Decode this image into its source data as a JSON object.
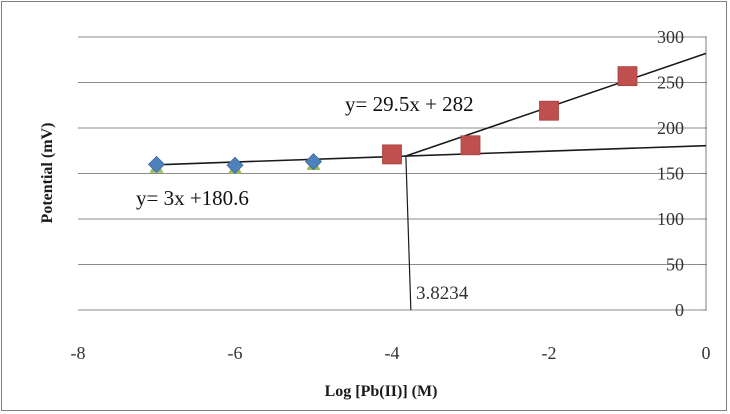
{
  "chart_data": {
    "type": "scatter",
    "xlabel": "Log [Pb(II)] (M)",
    "ylabel": "Potential (mV)",
    "xlim": [
      -8,
      0
    ],
    "ylim": [
      0,
      300
    ],
    "x_ticks": [
      "-8",
      "-6",
      "-4",
      "-2",
      "0"
    ],
    "y_ticks": [
      "0",
      "50",
      "100",
      "150",
      "200",
      "250",
      "300"
    ],
    "grid": "horizontal",
    "series": [
      {
        "marker": "diamond",
        "color": "#4f81bd",
        "points": [
          {
            "x": -7,
            "y": 160
          },
          {
            "x": -6,
            "y": 159
          },
          {
            "x": -5,
            "y": 163
          }
        ]
      },
      {
        "marker": "triangle",
        "color": "#9bbb59",
        "points": [
          {
            "x": -7,
            "y": 157
          },
          {
            "x": -6,
            "y": 156
          },
          {
            "x": -5,
            "y": 160
          }
        ]
      },
      {
        "marker": "square",
        "color": "#c0504d",
        "points": [
          {
            "x": -4,
            "y": 171
          },
          {
            "x": -3,
            "y": 181
          },
          {
            "x": -2,
            "y": 219
          },
          {
            "x": -1,
            "y": 257
          }
        ]
      }
    ],
    "trendlines": [
      {
        "slope": 3,
        "intercept": 180.6,
        "x_from": -7,
        "x_to": 0,
        "label": "y= 3x +180.6"
      },
      {
        "slope": 29.5,
        "intercept": 282,
        "x_from": -3.8234,
        "x_to": 0,
        "label": "y= 29.5x + 282"
      }
    ],
    "intersection": {
      "x": -3.8234,
      "label": "3.8234"
    }
  }
}
